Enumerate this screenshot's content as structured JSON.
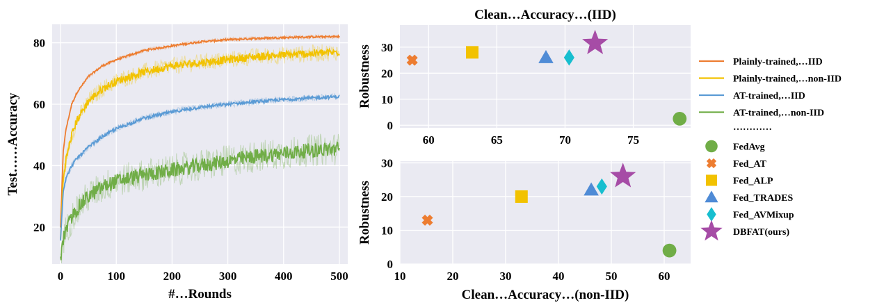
{
  "chart_data": [
    {
      "type": "line",
      "xlabel": "#…Rounds",
      "ylabel": "Test……Accuracy",
      "xlim": [
        -15,
        515
      ],
      "ylim": [
        8,
        86
      ],
      "xticks": [
        0,
        100,
        200,
        300,
        400,
        500
      ],
      "yticks": [
        20,
        40,
        60,
        80
      ],
      "grid": true,
      "series": [
        {
          "name": "Plainly-trained,…IID",
          "color": "#ed7d31",
          "noise": 0.3,
          "x": [
            0,
            5,
            10,
            20,
            30,
            50,
            75,
            100,
            150,
            200,
            250,
            300,
            350,
            400,
            450,
            500
          ],
          "y": [
            20,
            45,
            52,
            60,
            64,
            69,
            72.5,
            74.5,
            77.5,
            79,
            80.3,
            81,
            81.4,
            81.7,
            81.9,
            82
          ]
        },
        {
          "name": "Plainly-trained,…non-IID",
          "color": "#f2c200",
          "noise": 1.3,
          "x": [
            0,
            5,
            10,
            20,
            30,
            50,
            75,
            100,
            150,
            200,
            250,
            300,
            350,
            400,
            450,
            500
          ],
          "y": [
            16,
            36,
            42,
            50,
            55,
            61,
            65,
            67.5,
            70.5,
            72.5,
            73.5,
            74.5,
            75.5,
            76,
            76.5,
            77
          ]
        },
        {
          "name": "AT-trained,…IID",
          "color": "#5b9bd5",
          "noise": 0.5,
          "x": [
            0,
            5,
            10,
            20,
            30,
            50,
            75,
            100,
            150,
            200,
            250,
            300,
            350,
            400,
            450,
            500
          ],
          "y": [
            16,
            32,
            36,
            40,
            42.5,
            46,
            49.5,
            52,
            55.5,
            57.5,
            59,
            60,
            60.8,
            61.5,
            62,
            62.5
          ]
        },
        {
          "name": "AT-trained,…non-IID",
          "color": "#70ad47",
          "noise": 2.4,
          "x": [
            0,
            5,
            10,
            20,
            30,
            50,
            75,
            100,
            150,
            200,
            250,
            300,
            350,
            400,
            450,
            500
          ],
          "y": [
            10,
            16,
            19,
            23,
            26,
            30,
            33,
            35,
            37,
            38.5,
            40,
            41.5,
            43,
            44,
            45,
            45.5
          ]
        }
      ]
    },
    {
      "type": "scatter",
      "title": "Clean…Accuracy…(IID)",
      "ylabel": "Robustness",
      "xlim": [
        57.9,
        79.2
      ],
      "ylim": [
        -1,
        38.5
      ],
      "xticks": [
        60,
        65,
        70,
        75
      ],
      "yticks": [
        0,
        10,
        20,
        30
      ],
      "grid": true,
      "points": [
        {
          "name": "FedAvg",
          "x": 78.4,
          "y": 2.5
        },
        {
          "name": "Fed_AT",
          "x": 58.8,
          "y": 25
        },
        {
          "name": "Fed_ALP",
          "x": 63.2,
          "y": 28
        },
        {
          "name": "Fed_TRADES",
          "x": 68.6,
          "y": 26
        },
        {
          "name": "Fed_AVMixup",
          "x": 70.3,
          "y": 26
        },
        {
          "name": "DBFAT(ours)",
          "x": 72.2,
          "y": 31.5
        }
      ]
    },
    {
      "type": "scatter",
      "xlabel": "Clean…Accuracy…(non-IID)",
      "ylabel": "Robustness",
      "xlim": [
        10,
        65
      ],
      "ylim": [
        0,
        30.5
      ],
      "xticks": [
        10,
        20,
        30,
        40,
        50,
        60
      ],
      "yticks": [
        0,
        10,
        20,
        30
      ],
      "grid": true,
      "points": [
        {
          "name": "FedAvg",
          "x": 61,
          "y": 4
        },
        {
          "name": "Fed_AT",
          "x": 15.2,
          "y": 13
        },
        {
          "name": "Fed_ALP",
          "x": 33,
          "y": 20
        },
        {
          "name": "Fed_TRADES",
          "x": 46.2,
          "y": 22
        },
        {
          "name": "Fed_AVMixup",
          "x": 48.2,
          "y": 23
        },
        {
          "name": "DBFAT(ours)",
          "x": 52.2,
          "y": 26
        }
      ]
    }
  ],
  "legend": {
    "placement": "right",
    "separator": "…………",
    "line_entries": [
      {
        "label": "Plainly-trained,…IID",
        "color": "#ed7d31"
      },
      {
        "label": "Plainly-trained,…non-IID",
        "color": "#f2c200"
      },
      {
        "label": "AT-trained,…IID",
        "color": "#5b9bd5"
      },
      {
        "label": "AT-trained,…non-IID",
        "color": "#70ad47"
      }
    ],
    "marker_entries": [
      {
        "label": "FedAvg",
        "color": "#70ad47",
        "marker": "circle"
      },
      {
        "label": "Fed_AT",
        "color": "#ed7d31",
        "marker": "x"
      },
      {
        "label": "Fed_ALP",
        "color": "#f2c200",
        "marker": "square"
      },
      {
        "label": "Fed_TRADES",
        "color": "#4f8bd6",
        "marker": "triangle"
      },
      {
        "label": "Fed_AVMixup",
        "color": "#17becf",
        "marker": "diamond"
      },
      {
        "label": "DBFAT(ours)",
        "color": "#a64ca6",
        "marker": "star"
      }
    ]
  }
}
